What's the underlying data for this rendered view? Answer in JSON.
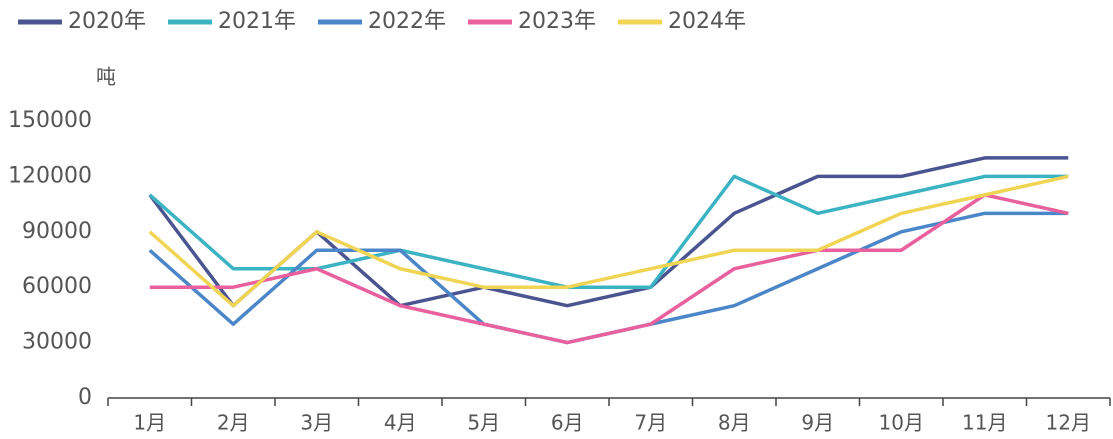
{
  "chart_data": {
    "type": "line",
    "y_label": "吨",
    "categories": [
      "1月",
      "2月",
      "3月",
      "4月",
      "5月",
      "6月",
      "7月",
      "8月",
      "9月",
      "10月",
      "11月",
      "12月"
    ],
    "series": [
      {
        "name": "2020年",
        "color": "#4a5490",
        "values": [
          110000,
          50000,
          90000,
          50000,
          60000,
          50000,
          60000,
          100000,
          120000,
          120000,
          130000,
          130000
        ]
      },
      {
        "name": "2021年",
        "color": "#3bb3c3",
        "values": [
          110000,
          70000,
          70000,
          80000,
          70000,
          60000,
          60000,
          120000,
          100000,
          110000,
          120000,
          120000
        ]
      },
      {
        "name": "2022年",
        "color": "#4a86c8",
        "values": [
          80000,
          40000,
          80000,
          80000,
          40000,
          30000,
          40000,
          50000,
          70000,
          90000,
          100000,
          100000
        ]
      },
      {
        "name": "2023年",
        "color": "#e8609e",
        "values": [
          60000,
          60000,
          70000,
          50000,
          40000,
          30000,
          40000,
          70000,
          80000,
          80000,
          110000,
          100000
        ]
      },
      {
        "name": "2024年",
        "color": "#f0d454",
        "values": [
          90000,
          50000,
          90000,
          70000,
          60000,
          60000,
          70000,
          80000,
          80000,
          100000,
          110000,
          120000
        ]
      }
    ],
    "ylim": [
      0,
      150000
    ],
    "yticks": [
      0,
      30000,
      60000,
      90000,
      120000,
      150000
    ],
    "grid": false,
    "legend": "top-left"
  }
}
